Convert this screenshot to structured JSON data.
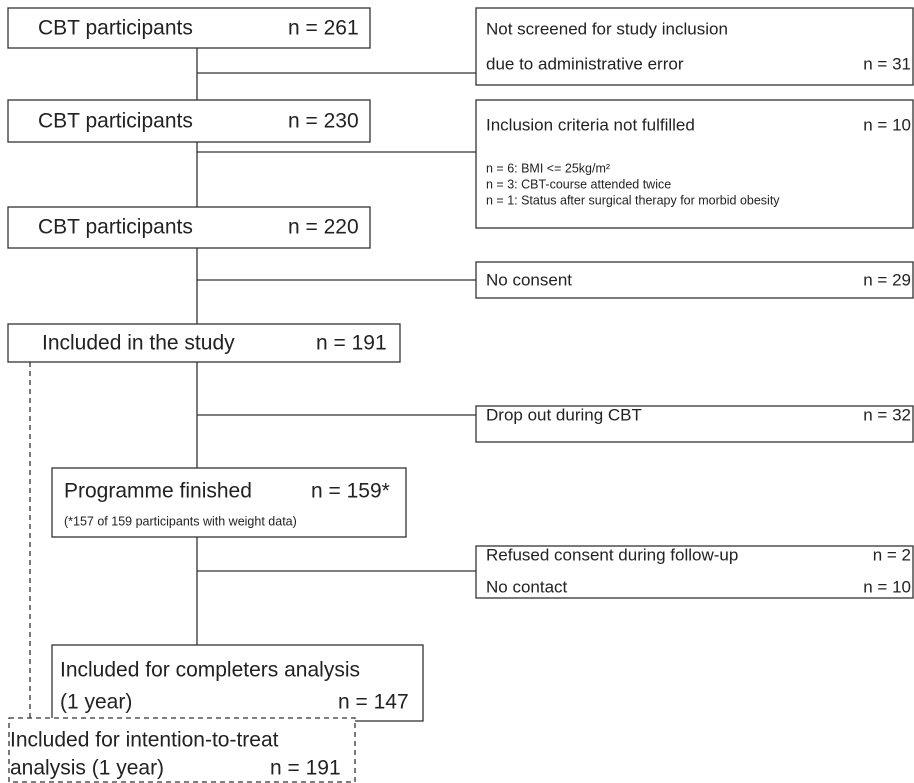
{
  "left_boxes": [
    {
      "label": "CBT participants",
      "n": "n = 261"
    },
    {
      "label": "CBT participants",
      "n": "n = 230"
    },
    {
      "label": "CBT participants",
      "n": "n = 220"
    },
    {
      "label": "Included in the study",
      "n": "n = 191"
    },
    {
      "label": "Programme finished",
      "n": "n = 159*",
      "note": "(*157 of 159 participants with weight data)"
    },
    {
      "lines": [
        "Included for completers analysis",
        "(1 year)"
      ],
      "n": "n = 147"
    },
    {
      "lines": [
        "Included for intention-to-treat",
        "analysis (1 year)"
      ],
      "n": "n = 191"
    }
  ],
  "right_boxes": [
    {
      "rows": [
        {
          "text": "Not screened for study inclusion"
        },
        {
          "text": "due to administrative error",
          "n": "n = 31"
        }
      ]
    },
    {
      "rows": [
        {
          "text": "Inclusion criteria not fulfilled",
          "n": "n = 10"
        }
      ],
      "details": [
        "n = 6: BMI <= 25kg/m²",
        "n = 3: CBT-course attended twice",
        "n = 1: Status after surgical therapy for morbid obesity"
      ]
    },
    {
      "rows": [
        {
          "text": "No consent",
          "n": "n = 29"
        }
      ]
    },
    {
      "rows": [
        {
          "text": "Drop out during CBT",
          "n": "n = 32"
        }
      ]
    },
    {
      "rows": [
        {
          "text": "Refused consent during follow-up",
          "n": "n = 2"
        },
        {
          "text": "No contact",
          "n": "n = 10"
        }
      ]
    }
  ]
}
